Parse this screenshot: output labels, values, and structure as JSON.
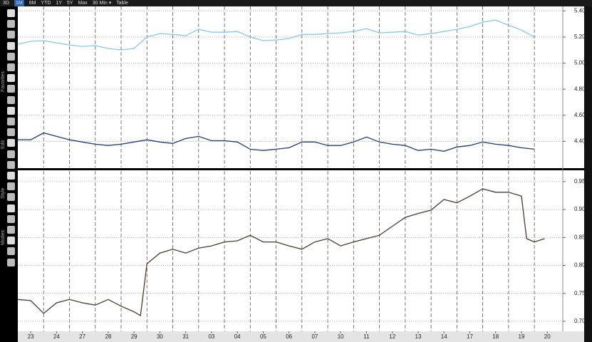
{
  "ui": {
    "toolbar": [
      "3D",
      "1M",
      "6M",
      "YTD",
      "1Y",
      "5Y",
      "Max",
      "30 Min ▾",
      "Table"
    ],
    "sidebar_sections": [
      "Favorites",
      "Edit",
      "Style",
      "Modes"
    ]
  },
  "chart_data": [
    {
      "type": "line",
      "x": [
        -0.5,
        0,
        0.5,
        1,
        1.5,
        2,
        2.5,
        3,
        3.5,
        4,
        4.5,
        5,
        5.5,
        6,
        6.5,
        7,
        7.5,
        8,
        8.5,
        9,
        9.5,
        10,
        10.5,
        11,
        11.5,
        12,
        12.5,
        13,
        13.5,
        14,
        14.5,
        15,
        15.5,
        16,
        16.5,
        17,
        17.5,
        18,
        18.5,
        19,
        19.5
      ],
      "series": [
        {
          "color": "#86c8ec",
          "values": [
            5.145,
            5.167,
            5.172,
            5.155,
            5.139,
            5.128,
            5.134,
            5.112,
            5.101,
            5.112,
            5.2,
            5.226,
            5.22,
            5.21,
            5.259,
            5.237,
            5.237,
            5.242,
            5.2,
            5.172,
            5.177,
            5.188,
            5.22,
            5.22,
            5.226,
            5.232,
            5.242,
            5.264,
            5.232,
            5.237,
            5.242,
            5.215,
            5.226,
            5.242,
            5.259,
            5.28,
            5.313,
            5.33,
            5.29,
            5.253,
            5.2
          ]
        },
        {
          "color": "#1e3c78",
          "values": [
            4.412,
            4.412,
            4.465,
            4.438,
            4.412,
            4.395,
            4.378,
            4.368,
            4.378,
            4.395,
            4.412,
            4.395,
            4.384,
            4.422,
            4.438,
            4.405,
            4.405,
            4.395,
            4.34,
            4.33,
            4.34,
            4.351,
            4.395,
            4.395,
            4.368,
            4.368,
            4.395,
            4.433,
            4.395,
            4.378,
            4.368,
            4.33,
            4.34,
            4.324,
            4.357,
            4.368,
            4.395,
            4.378,
            4.368,
            4.351,
            4.34
          ]
        }
      ],
      "xlim": [
        -0.5,
        20.6
      ],
      "ylim": [
        4.2,
        5.44
      ],
      "yticks": [
        {
          "value": 4.4,
          "label": "4.40"
        },
        {
          "value": 4.6,
          "label": "4.60"
        },
        {
          "value": 4.8,
          "label": "4.80"
        },
        {
          "value": 5.0,
          "label": "5.00"
        },
        {
          "value": 5.2,
          "label": "5.20"
        },
        {
          "value": 5.4,
          "label": "5.40"
        }
      ]
    },
    {
      "type": "line",
      "x": [
        -0.5,
        0,
        0.5,
        1,
        1.5,
        2,
        2.5,
        3,
        3.5,
        4,
        4.25,
        4.5,
        5,
        5.5,
        6,
        6.5,
        7,
        7.5,
        8,
        8.5,
        9,
        9.5,
        10,
        10.5,
        11,
        11.5,
        12,
        12.5,
        13,
        13.5,
        14,
        14.5,
        15,
        15.5,
        16,
        16.5,
        17,
        17.5,
        18,
        18.5,
        19,
        19.2,
        19.5,
        19.9
      ],
      "series": [
        {
          "color": "#4a3b30",
          "values": [
            0.739,
            0.737,
            0.714,
            0.733,
            0.739,
            0.733,
            0.729,
            0.739,
            0.727,
            0.717,
            0.71,
            0.803,
            0.822,
            0.829,
            0.822,
            0.831,
            0.835,
            0.842,
            0.844,
            0.854,
            0.842,
            0.842,
            0.835,
            0.829,
            0.842,
            0.848,
            0.835,
            0.842,
            0.848,
            0.854,
            0.87,
            0.886,
            0.893,
            0.899,
            0.918,
            0.912,
            0.924,
            0.937,
            0.931,
            0.931,
            0.924,
            0.848,
            0.842,
            0.848
          ]
        }
      ],
      "xlim": [
        -0.5,
        20.6
      ],
      "ylim": [
        0.682,
        0.969
      ],
      "yticks": [
        {
          "value": 0.7,
          "label": "0.70"
        },
        0.75,
        {
          "value": 0.8,
          "label": "0.80"
        },
        0.85,
        {
          "value": 0.9,
          "label": "0.90"
        },
        0.95
      ],
      "xticks": [
        {
          "value": 0,
          "label": "23"
        },
        {
          "value": 1,
          "label": "24"
        },
        {
          "value": 2,
          "label": "27"
        },
        {
          "value": 3,
          "label": "28"
        },
        {
          "value": 4,
          "label": "29"
        },
        {
          "value": 5,
          "label": "30"
        },
        {
          "value": 6,
          "label": "31"
        },
        {
          "value": 7,
          "label": "03"
        },
        {
          "value": 8,
          "label": "04"
        },
        {
          "value": 9,
          "label": "05"
        },
        {
          "value": 10,
          "label": "06"
        },
        {
          "value": 11,
          "label": "07"
        },
        {
          "value": 12,
          "label": "10"
        },
        {
          "value": 13,
          "label": "11"
        },
        {
          "value": 14,
          "label": "12"
        },
        {
          "value": 15,
          "label": "13"
        },
        {
          "value": 16,
          "label": "14"
        },
        {
          "value": 17,
          "label": "17"
        },
        {
          "value": 18,
          "label": "18"
        },
        {
          "value": 19,
          "label": "19"
        },
        {
          "value": 20,
          "label": "20"
        }
      ]
    }
  ]
}
